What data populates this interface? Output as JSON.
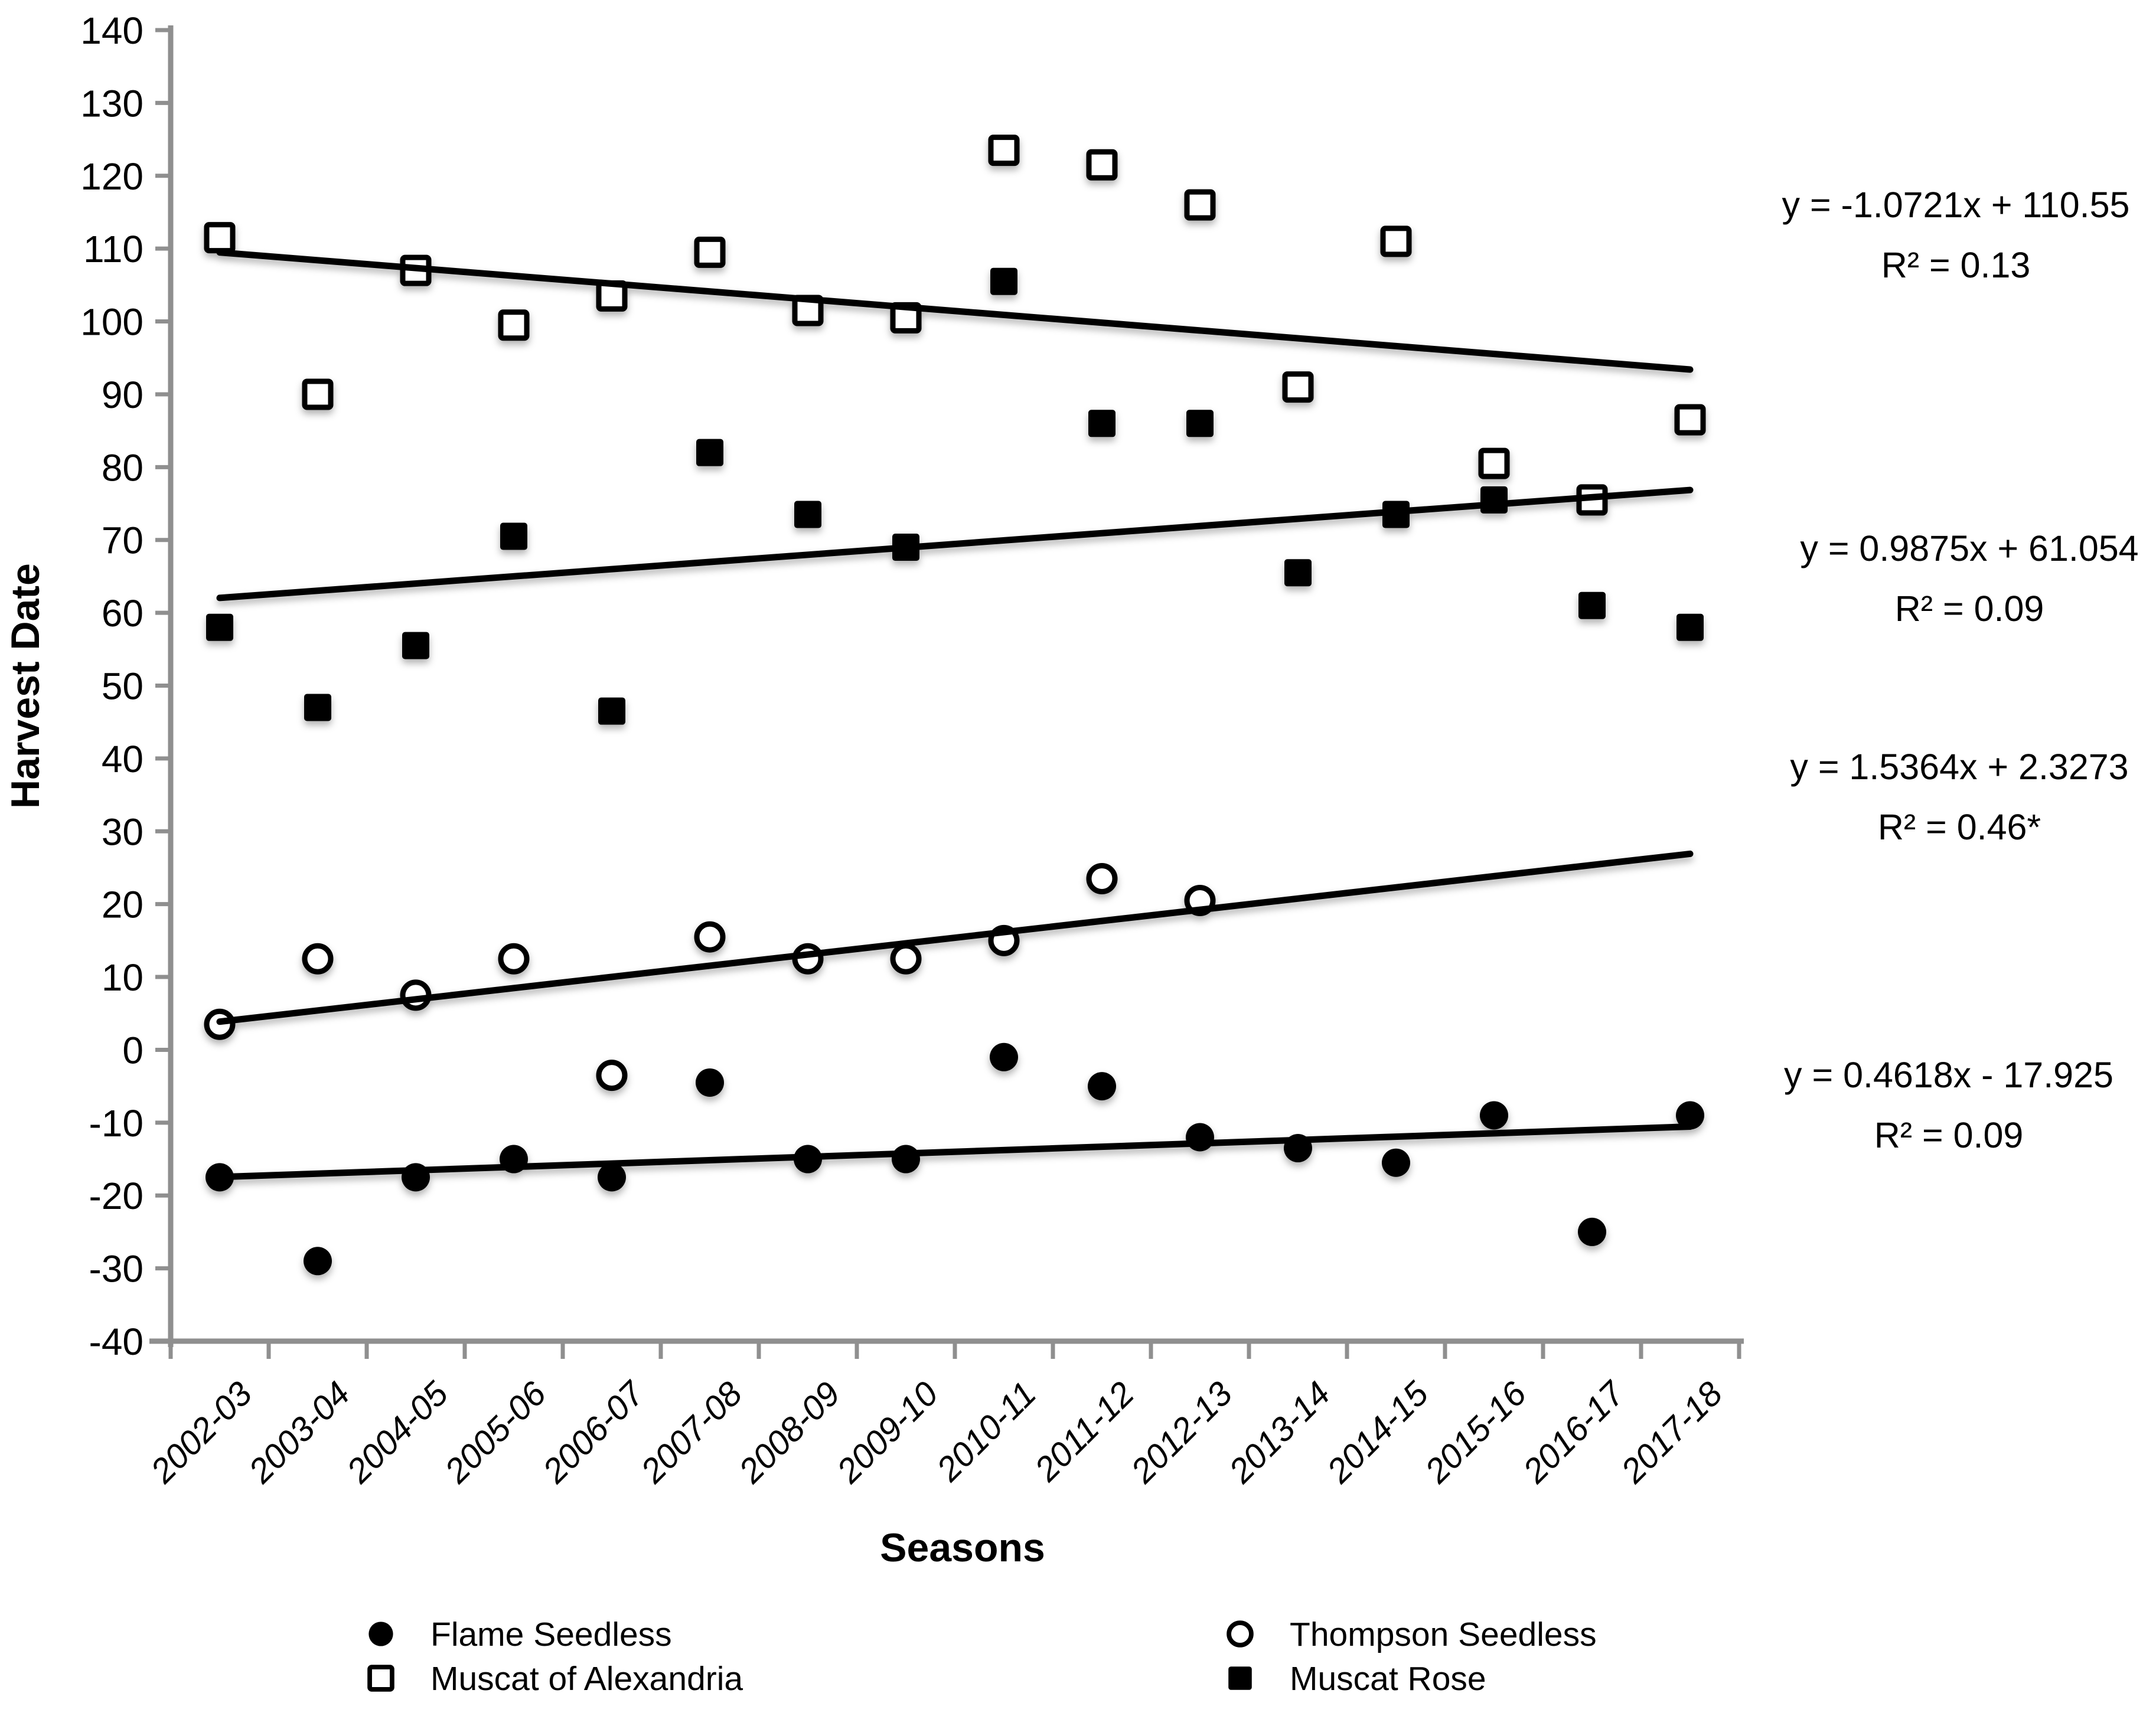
{
  "chart_data": {
    "type": "scatter",
    "title": "",
    "xlabel": "Seasons",
    "ylabel": "Harvest Date",
    "ylim": [
      -40,
      140
    ],
    "ytick_step": 10,
    "ytick_labels": [
      "140",
      "130",
      "120",
      "110",
      "100",
      "90",
      "80",
      "70",
      "60",
      "50",
      "40",
      "30",
      "20",
      "10",
      "0",
      "-10",
      "-20",
      "-30",
      "-40"
    ],
    "grid": false,
    "legend_position": "bottom-two-columns",
    "categories": [
      "2002-03",
      "2003-04",
      "2004-05",
      "2005-06",
      "2006-07",
      "2007-08",
      "2008-09",
      "2009-10",
      "2010-11",
      "2011-12",
      "2012-13",
      "2013-14",
      "2014-15",
      "2015-16",
      "2016-17",
      "2017-18"
    ],
    "series": [
      {
        "name": "Flame Seedless",
        "marker": "filled-circle",
        "values": [
          -17.5,
          -29,
          -17.5,
          -15,
          -17.5,
          -4.5,
          -15,
          -15,
          -1,
          -5,
          -12,
          -13.5,
          -15.5,
          -9,
          -25,
          -9
        ]
      },
      {
        "name": "Thompson Seedless",
        "marker": "open-circle",
        "values": [
          3.5,
          12.5,
          7.5,
          12.5,
          -3.5,
          15.5,
          12.5,
          12.5,
          15,
          23.5,
          20.5,
          null,
          null,
          null,
          null,
          null
        ]
      },
      {
        "name": "Muscat of Alexandria",
        "marker": "open-square",
        "values": [
          111.5,
          90,
          107,
          99.5,
          103.5,
          109.5,
          101.5,
          100.5,
          123.5,
          121.5,
          116,
          91,
          111,
          80.5,
          75.5,
          86.5
        ]
      },
      {
        "name": "Muscat Rose",
        "marker": "filled-square",
        "values": [
          58,
          47,
          55.5,
          70.5,
          46.5,
          82,
          73.5,
          69,
          105.5,
          86,
          86,
          65.5,
          73.5,
          75.5,
          61,
          58
        ]
      }
    ],
    "trendlines": [
      {
        "series": "Muscat of Alexandria",
        "slope": -1.0721,
        "intercept": 110.55,
        "equation": "y = -1.0721x + 110.55",
        "r2": "R² = 0.13"
      },
      {
        "series": "Muscat Rose",
        "slope": 0.9875,
        "intercept": 61.054,
        "equation": "y = 0.9875x + 61.054",
        "r2": "R² = 0.09"
      },
      {
        "series": "Thompson Seedless",
        "slope": 1.5364,
        "intercept": 2.3273,
        "equation": "y = 1.5364x + 2.3273",
        "r2": "R² = 0.46*"
      },
      {
        "series": "Flame Seedless",
        "slope": 0.4618,
        "intercept": -17.925,
        "equation": "y = 0.4618x - 17.925",
        "r2": "R² = 0.09"
      }
    ],
    "legend": [
      {
        "label": "Flame Seedless",
        "marker": "filled-circle"
      },
      {
        "label": "Thompson Seedless",
        "marker": "open-circle"
      },
      {
        "label": "Muscat of Alexandria",
        "marker": "open-square"
      },
      {
        "label": "Muscat Rose",
        "marker": "filled-square"
      }
    ]
  },
  "colors": {
    "marker": "#000000",
    "trendline": "#000000",
    "axis": "#8f8f8f",
    "text": "#000000",
    "background": "#ffffff"
  }
}
